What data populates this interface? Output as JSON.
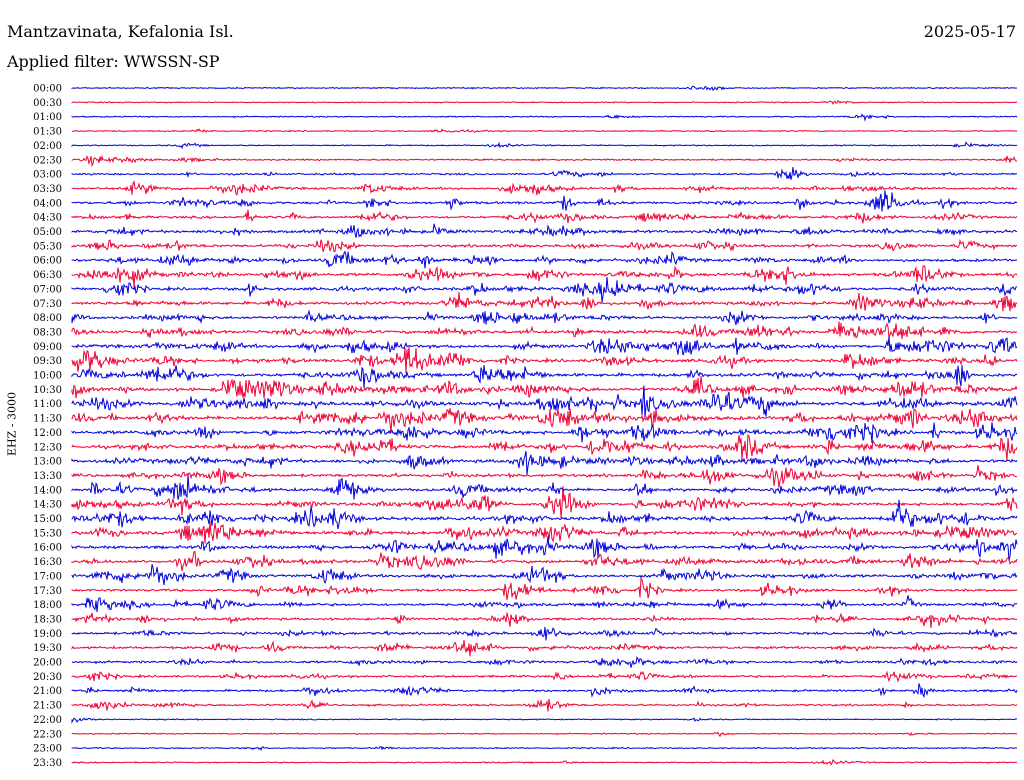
{
  "header": {
    "station": "Mantzavinata, Kefalonia Isl.",
    "date": "2025-05-17",
    "filter": "Applied filter: WWSSN-SP"
  },
  "channel_label": "EHZ - 3000",
  "colors": {
    "odd_trace": "#0000dd",
    "even_trace": "#ee0033"
  },
  "chart_data": {
    "type": "line",
    "ylabel": "EHZ - 3000",
    "row_labels": [
      "00:00",
      "00:30",
      "01:00",
      "01:30",
      "02:00",
      "02:30",
      "03:00",
      "03:30",
      "04:00",
      "04:30",
      "05:00",
      "05:30",
      "06:00",
      "06:30",
      "07:00",
      "07:30",
      "08:00",
      "08:30",
      "09:00",
      "09:30",
      "10:00",
      "10:30",
      "11:00",
      "11:30",
      "12:00",
      "12:30",
      "13:00",
      "13:30",
      "14:00",
      "14:30",
      "15:00",
      "15:30",
      "16:00",
      "16:30",
      "17:00",
      "17:30",
      "18:00",
      "18:30",
      "19:00",
      "19:30",
      "20:00",
      "20:30",
      "21:00",
      "21:30",
      "22:00",
      "22:30",
      "23:00",
      "23:30"
    ],
    "row_activity": [
      0.05,
      0.02,
      0.06,
      0.04,
      0.08,
      0.18,
      0.22,
      0.4,
      0.45,
      0.42,
      0.55,
      0.5,
      0.55,
      0.6,
      0.58,
      0.6,
      0.55,
      0.62,
      0.7,
      0.65,
      0.7,
      0.72,
      0.85,
      0.82,
      0.75,
      0.72,
      0.68,
      0.6,
      0.58,
      0.62,
      0.72,
      0.7,
      0.62,
      0.6,
      0.58,
      0.45,
      0.48,
      0.42,
      0.4,
      0.42,
      0.38,
      0.35,
      0.34,
      0.25,
      0.04,
      0.05,
      0.06,
      0.05
    ],
    "x_range_minutes": [
      0,
      30
    ],
    "grid": false,
    "legend": "none"
  }
}
